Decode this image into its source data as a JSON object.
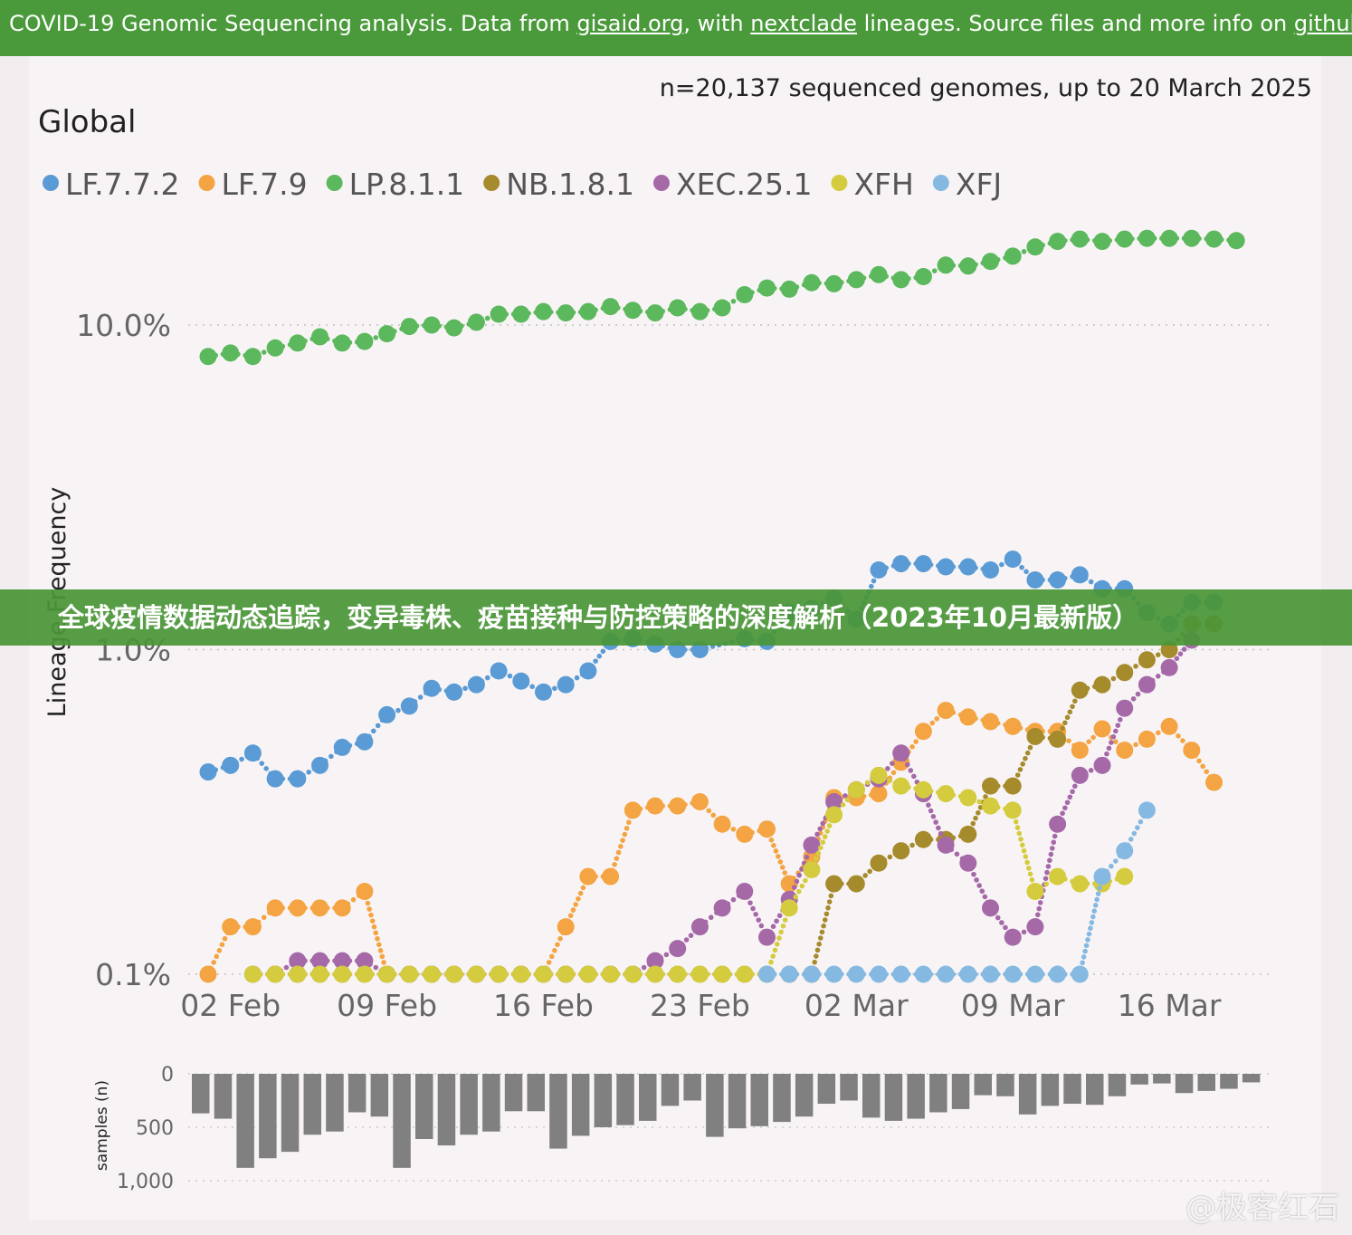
{
  "header": {
    "part1": "COVID-19 Genomic Sequencing analysis. Data from ",
    "link1": "gisaid.org",
    "part2": ", with ",
    "link2": "nextclade",
    "part3": " lineages. Source files and more info on ",
    "link3": "github",
    "part4": "."
  },
  "overlay_headline": "全球疫情数据动态追踪，变异毒株、疫苗接种与防控策略的深度解析（2023年10月最新版）",
  "watermark": "@极客红石",
  "chart_data": [
    {
      "type": "line",
      "title": "Global",
      "subtitle": "n=20,137 sequenced genomes, up to 20 March 2025",
      "ylabel": "Lineage Frequency",
      "xlabel": "",
      "yscale": "log",
      "ylim": [
        0.1,
        30
      ],
      "y_ticks": [
        0.1,
        1.0,
        10.0
      ],
      "y_tick_labels": [
        "0.1%",
        "1.0%",
        "10.0%"
      ],
      "x_tick_labels": [
        "02 Feb",
        "09 Feb",
        "16 Feb",
        "23 Feb",
        "02 Mar",
        "09 Mar",
        "16 Mar"
      ],
      "x_start": "2025-02-01",
      "grid": true,
      "legend_position": "top-left",
      "series": [
        {
          "name": "LF.7.7.2",
          "color": "#5b9bd5",
          "values": [
            0.42,
            0.44,
            0.48,
            0.4,
            0.4,
            0.44,
            0.5,
            0.52,
            0.63,
            0.67,
            0.76,
            0.74,
            0.78,
            0.86,
            0.8,
            0.74,
            0.78,
            0.86,
            1.06,
            1.08,
            1.04,
            1.0,
            1.0,
            null,
            1.08,
            1.06,
            1.3,
            1.34,
            1.44,
            1.24,
            1.76,
            1.84,
            1.84,
            1.8,
            1.8,
            1.76,
            1.9,
            1.64,
            1.64,
            1.7,
            1.54,
            1.54,
            1.3,
            1.2,
            1.4,
            1.4
          ]
        },
        {
          "name": "LF.7.9",
          "color": "#f4a442",
          "values": [
            0.1,
            0.14,
            0.14,
            0.16,
            0.16,
            0.16,
            0.16,
            0.18,
            0.1,
            0.1,
            0.1,
            0.1,
            0.1,
            0.1,
            0.1,
            0.1,
            0.14,
            0.2,
            0.2,
            0.32,
            0.33,
            0.33,
            0.34,
            0.29,
            0.27,
            0.28,
            0.19,
            0.23,
            0.35,
            0.35,
            0.36,
            0.45,
            0.56,
            0.65,
            0.62,
            0.6,
            0.58,
            0.56,
            0.56,
            0.49,
            0.57,
            0.49,
            0.53,
            0.58,
            0.49,
            0.39
          ]
        },
        {
          "name": "LP.8.1.1",
          "color": "#5cb85c",
          "values": [
            8.0,
            8.2,
            8.0,
            8.5,
            8.8,
            9.2,
            8.8,
            8.9,
            9.4,
            9.9,
            10.0,
            9.8,
            10.2,
            10.8,
            10.8,
            11.0,
            10.9,
            11.0,
            11.4,
            11.1,
            10.9,
            11.3,
            11.0,
            11.3,
            12.4,
            13.0,
            12.9,
            13.5,
            13.4,
            13.8,
            14.3,
            13.8,
            14.1,
            15.3,
            15.2,
            15.7,
            16.3,
            17.4,
            18.1,
            18.4,
            18.1,
            18.4,
            18.5,
            18.5,
            18.5,
            18.4,
            18.2
          ]
        },
        {
          "name": "NB.1.8.1",
          "color": "#a68b2c",
          "values": [
            null,
            null,
            0.1,
            0.1,
            0.1,
            0.1,
            0.1,
            0.1,
            0.1,
            0.1,
            0.1,
            0.1,
            0.1,
            0.1,
            0.1,
            0.1,
            0.1,
            0.1,
            0.1,
            0.1,
            0.1,
            0.1,
            0.1,
            0.1,
            0.1,
            0.1,
            0.1,
            0.1,
            0.19,
            0.19,
            0.22,
            0.24,
            0.26,
            0.26,
            0.27,
            0.38,
            0.38,
            0.54,
            0.53,
            0.75,
            0.78,
            0.85,
            0.93,
            1.0,
            1.2,
            1.2
          ]
        },
        {
          "name": "XEC.25.1",
          "color": "#a569a8",
          "values": [
            null,
            null,
            0.1,
            0.1,
            0.11,
            0.11,
            0.11,
            0.11,
            0.1,
            0.1,
            0.1,
            0.1,
            0.1,
            0.1,
            0.1,
            0.1,
            0.1,
            0.1,
            0.1,
            0.1,
            0.11,
            0.12,
            0.14,
            0.16,
            0.18,
            0.13,
            0.17,
            0.25,
            0.34,
            0.37,
            0.4,
            0.48,
            0.36,
            0.25,
            0.22,
            0.16,
            0.13,
            0.14,
            0.29,
            0.41,
            0.44,
            0.66,
            0.78,
            0.88,
            1.07
          ]
        },
        {
          "name": "XFH",
          "color": "#d4cc3e",
          "values": [
            null,
            null,
            0.1,
            0.1,
            0.1,
            0.1,
            0.1,
            0.1,
            0.1,
            0.1,
            0.1,
            0.1,
            0.1,
            0.1,
            0.1,
            0.1,
            0.1,
            0.1,
            0.1,
            0.1,
            0.1,
            0.1,
            0.1,
            0.1,
            0.1,
            0.1,
            0.16,
            0.21,
            0.31,
            0.37,
            0.41,
            0.38,
            0.37,
            0.36,
            0.35,
            0.33,
            0.32,
            0.18,
            0.2,
            0.19,
            0.19,
            0.2
          ]
        },
        {
          "name": "XFJ",
          "color": "#86b9e2",
          "values": [
            null,
            null,
            null,
            null,
            null,
            null,
            null,
            null,
            null,
            null,
            null,
            null,
            null,
            null,
            null,
            null,
            null,
            null,
            null,
            null,
            null,
            null,
            null,
            null,
            null,
            0.1,
            0.1,
            0.1,
            0.1,
            0.1,
            0.1,
            0.1,
            0.1,
            0.1,
            0.1,
            0.1,
            0.1,
            0.1,
            0.1,
            0.1,
            0.2,
            0.24,
            0.32
          ]
        }
      ]
    },
    {
      "type": "bar",
      "ylabel": "samples (n)",
      "y_ticks": [
        0,
        500,
        1000
      ],
      "y_tick_labels": [
        "0",
        "500",
        "1,000"
      ],
      "ylim": [
        0,
        1000
      ],
      "y_inverted": true,
      "color": "#808080",
      "values": [
        370,
        420,
        880,
        790,
        730,
        570,
        540,
        360,
        400,
        880,
        610,
        670,
        570,
        540,
        350,
        350,
        700,
        580,
        500,
        480,
        440,
        300,
        250,
        590,
        510,
        490,
        450,
        400,
        280,
        250,
        410,
        440,
        420,
        360,
        330,
        200,
        210,
        380,
        300,
        280,
        290,
        210,
        100,
        90,
        180,
        160,
        140,
        80
      ]
    }
  ]
}
